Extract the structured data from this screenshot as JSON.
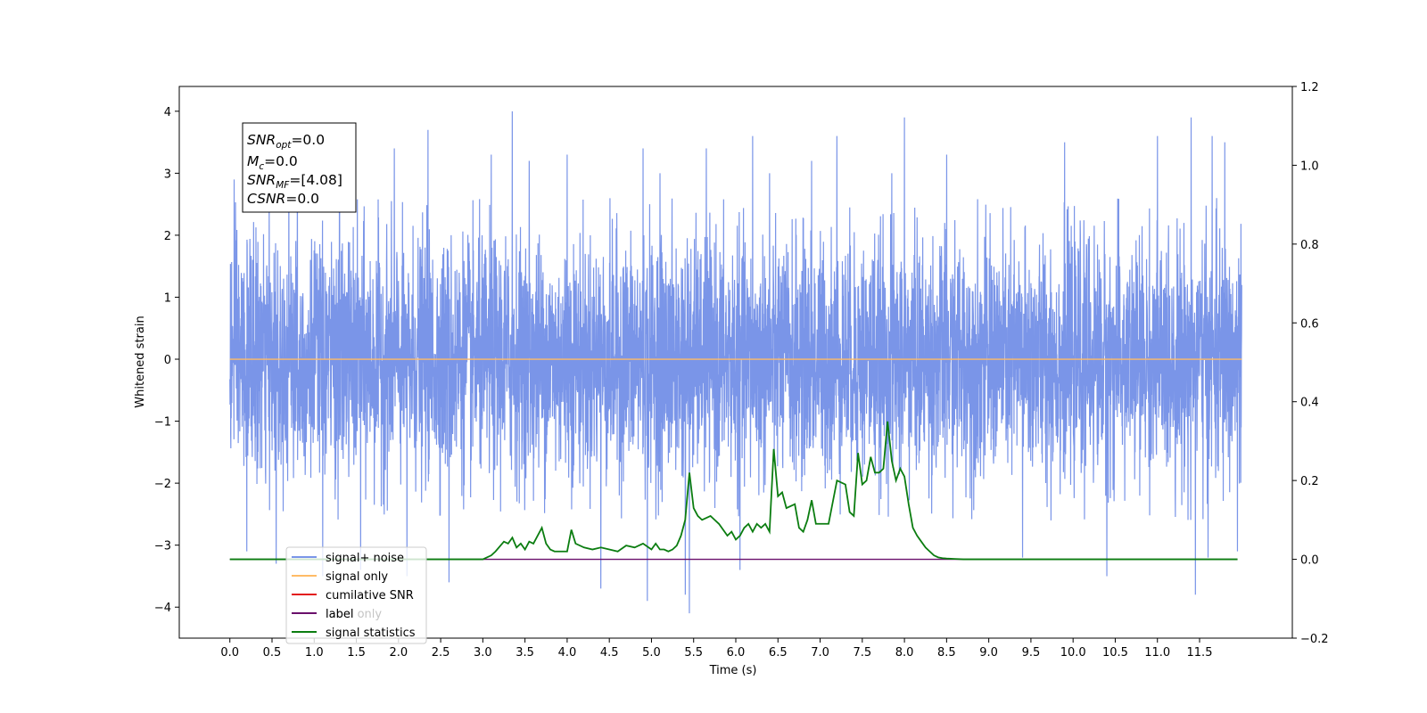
{
  "chart_data": {
    "type": "line",
    "xlabel": "Time (s)",
    "ylabel": "Whitened strain",
    "xlim": [
      -0.6,
      12.6
    ],
    "ylim": [
      -4.5,
      4.4
    ],
    "y2lim": [
      -0.2,
      1.2
    ],
    "x_ticks": [
      "0.0",
      "0.5",
      "1.0",
      "1.5",
      "2.0",
      "2.5",
      "3.0",
      "3.5",
      "4.0",
      "4.5",
      "5.0",
      "5.5",
      "6.0",
      "6.5",
      "7.0",
      "7.5",
      "8.0",
      "8.5",
      "9.0",
      "9.5",
      "10.0",
      "10.5",
      "11.0",
      "11.5"
    ],
    "y_ticks": [
      "4",
      "3",
      "2",
      "1",
      "0",
      "−1",
      "−2",
      "−3",
      "−4"
    ],
    "y2_ticks": [
      "1.2",
      "1.0",
      "0.8",
      "0.6",
      "0.4",
      "0.2",
      "0.0",
      "−0.2"
    ],
    "annotation": {
      "lines": [
        {
          "sym": "SNR",
          "sub": "opt",
          "value": "=0.0"
        },
        {
          "sym": "M",
          "sub": "c",
          "value": "=0.0"
        },
        {
          "sym": "SNR",
          "sub": "MF",
          "value": "=[4.08]"
        },
        {
          "sym": "CSNR",
          "sub": "",
          "value": "=0.0"
        }
      ]
    },
    "legend": {
      "location": "lower-left",
      "entries": [
        "signal+ noise",
        "signal only",
        "cumilative SNR",
        "label",
        "signal statistics"
      ],
      "hidden_entry": "label only"
    },
    "series": [
      {
        "name": "signal+ noise",
        "axis": "left",
        "color": "#7a95e8",
        "kind": "noise",
        "t_start": 0.0,
        "t_end": 12.0,
        "spikes": [
          [
            0.05,
            2.9
          ],
          [
            0.2,
            -3.1
          ],
          [
            0.55,
            -3.3
          ],
          [
            0.7,
            3.1
          ],
          [
            0.8,
            3.3
          ],
          [
            1.1,
            -3.5
          ],
          [
            1.3,
            3.2
          ],
          [
            1.55,
            -3.4
          ],
          [
            1.95,
            3.4
          ],
          [
            2.1,
            -3.5
          ],
          [
            2.35,
            3.7
          ],
          [
            2.6,
            -3.6
          ],
          [
            3.1,
            3.3
          ],
          [
            3.35,
            4.0
          ],
          [
            3.55,
            3.2
          ],
          [
            4.0,
            3.3
          ],
          [
            4.4,
            -3.7
          ],
          [
            4.9,
            3.4
          ],
          [
            4.95,
            -3.9
          ],
          [
            5.1,
            3.0
          ],
          [
            5.4,
            -3.8
          ],
          [
            5.45,
            -4.1
          ],
          [
            5.65,
            3.4
          ],
          [
            6.05,
            -3.4
          ],
          [
            6.2,
            3.6
          ],
          [
            6.4,
            3.0
          ],
          [
            6.9,
            3.2
          ],
          [
            7.2,
            3.6
          ],
          [
            7.85,
            3.0
          ],
          [
            8.0,
            3.9
          ],
          [
            8.5,
            3.3
          ],
          [
            9.4,
            -3.2
          ],
          [
            9.9,
            3.5
          ],
          [
            10.4,
            -3.5
          ],
          [
            11.0,
            3.6
          ],
          [
            11.4,
            3.9
          ],
          [
            11.45,
            -3.8
          ],
          [
            11.6,
            -3.2
          ],
          [
            11.65,
            3.6
          ],
          [
            11.8,
            3.5
          ],
          [
            11.95,
            -3.1
          ]
        ]
      },
      {
        "name": "signal only",
        "axis": "left",
        "color": "#ffbb66",
        "x": [
          0.0,
          12.0
        ],
        "y": [
          0.0,
          0.0
        ]
      },
      {
        "name": "cumilative SNR",
        "axis": "right",
        "color": "#e31a1c",
        "x": [],
        "y": []
      },
      {
        "name": "label",
        "axis": "right",
        "color": "#6a0f6b",
        "x": [
          0.0,
          11.95
        ],
        "y": [
          0.0,
          0.0
        ]
      },
      {
        "name": "signal statistics",
        "axis": "right",
        "color": "#0b7d10",
        "x": [
          0.0,
          2.4,
          2.8,
          3.0,
          3.1,
          3.15,
          3.25,
          3.3,
          3.35,
          3.4,
          3.45,
          3.5,
          3.55,
          3.6,
          3.7,
          3.75,
          3.8,
          3.85,
          3.9,
          4.0,
          4.05,
          4.1,
          4.2,
          4.3,
          4.4,
          4.5,
          4.6,
          4.7,
          4.8,
          4.9,
          5.0,
          5.05,
          5.1,
          5.15,
          5.2,
          5.25,
          5.3,
          5.35,
          5.4,
          5.45,
          5.5,
          5.55,
          5.6,
          5.7,
          5.75,
          5.8,
          5.9,
          5.95,
          6.0,
          6.05,
          6.1,
          6.15,
          6.2,
          6.25,
          6.3,
          6.35,
          6.4,
          6.45,
          6.5,
          6.55,
          6.6,
          6.7,
          6.75,
          6.8,
          6.85,
          6.9,
          6.95,
          7.0,
          7.05,
          7.1,
          7.2,
          7.3,
          7.35,
          7.4,
          7.45,
          7.5,
          7.55,
          7.6,
          7.65,
          7.7,
          7.75,
          7.8,
          7.85,
          7.9,
          7.95,
          8.0,
          8.05,
          8.1,
          8.15,
          8.2,
          8.25,
          8.3,
          8.35,
          8.4,
          8.45,
          8.5,
          8.6,
          8.7,
          8.8,
          9.0,
          9.2,
          9.5,
          11.95
        ],
        "y": [
          0.0,
          0.0,
          0.0,
          0.0,
          0.01,
          0.02,
          0.045,
          0.04,
          0.055,
          0.03,
          0.04,
          0.025,
          0.045,
          0.04,
          0.08,
          0.04,
          0.025,
          0.02,
          0.02,
          0.02,
          0.075,
          0.04,
          0.03,
          0.025,
          0.03,
          0.025,
          0.02,
          0.035,
          0.03,
          0.04,
          0.025,
          0.04,
          0.025,
          0.025,
          0.02,
          0.025,
          0.035,
          0.06,
          0.1,
          0.22,
          0.13,
          0.11,
          0.1,
          0.11,
          0.1,
          0.09,
          0.06,
          0.07,
          0.05,
          0.06,
          0.08,
          0.09,
          0.07,
          0.09,
          0.08,
          0.09,
          0.07,
          0.28,
          0.16,
          0.17,
          0.13,
          0.14,
          0.08,
          0.07,
          0.1,
          0.15,
          0.09,
          0.09,
          0.09,
          0.09,
          0.2,
          0.19,
          0.12,
          0.11,
          0.27,
          0.19,
          0.2,
          0.26,
          0.22,
          0.22,
          0.23,
          0.35,
          0.25,
          0.2,
          0.23,
          0.21,
          0.14,
          0.08,
          0.06,
          0.045,
          0.03,
          0.02,
          0.01,
          0.005,
          0.003,
          0.002,
          0.001,
          0.0,
          0.0,
          0.0,
          0.0,
          0.0,
          0.0
        ]
      }
    ]
  }
}
